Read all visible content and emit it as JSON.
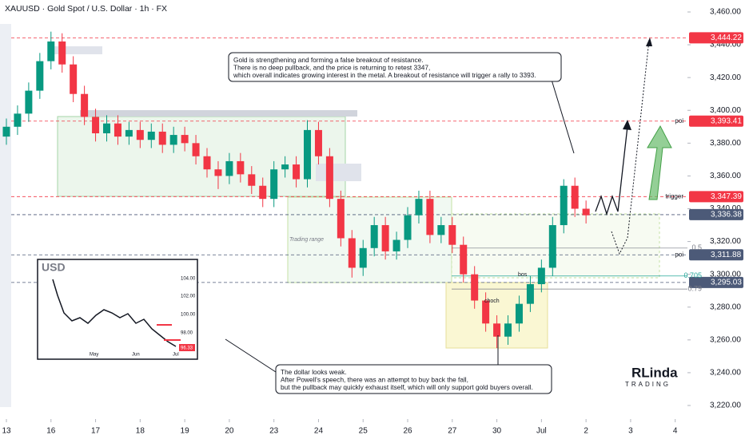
{
  "chart_data": {
    "type": "candlestick",
    "title": "XAUUSD · Gold Spot / U.S. Dollar · 1h · FX",
    "x": [
      0,
      0.25,
      0.5,
      0.75,
      1,
      1.25,
      1.5,
      1.75,
      2,
      2.25,
      2.5,
      2.75,
      3,
      3.25,
      3.5,
      3.75,
      4,
      4.25,
      4.5,
      4.75,
      5,
      5.25,
      5.5,
      5.75,
      6,
      6.25,
      6.5,
      6.75,
      7,
      7.25,
      7.5,
      7.75,
      8,
      8.25,
      8.5,
      8.75,
      9,
      9.25,
      9.5,
      9.75,
      10,
      10.25,
      10.5,
      10.75,
      11,
      11.25,
      11.5,
      11.75,
      12,
      12.25,
      12.5,
      12.75,
      13
    ],
    "open": [
      3384,
      3390,
      3398,
      3412,
      3430,
      3442,
      3428,
      3410,
      3396,
      3386,
      3392,
      3384,
      3388,
      3382,
      3387,
      3379,
      3385,
      3380,
      3372,
      3364,
      3360,
      3369,
      3361,
      3354,
      3346,
      3364,
      3367,
      3358,
      3388,
      3372,
      3346,
      3322,
      3304,
      3316,
      3330,
      3314,
      3321,
      3336,
      3346,
      3324,
      3330,
      3318,
      3300,
      3284,
      3270,
      3262,
      3270,
      3282,
      3294,
      3304,
      3330,
      3354,
      3340
    ],
    "high": [
      3395,
      3403,
      3417,
      3435,
      3448,
      3447,
      3433,
      3415,
      3401,
      3397,
      3397,
      3393,
      3393,
      3392,
      3392,
      3390,
      3390,
      3385,
      3377,
      3369,
      3374,
      3374,
      3366,
      3359,
      3369,
      3372,
      3372,
      3394,
      3393,
      3377,
      3351,
      3327,
      3321,
      3335,
      3335,
      3326,
      3341,
      3351,
      3351,
      3335,
      3335,
      3323,
      3305,
      3289,
      3275,
      3275,
      3287,
      3299,
      3309,
      3335,
      3358,
      3359,
      3345
    ],
    "low": [
      3379,
      3385,
      3393,
      3407,
      3425,
      3423,
      3405,
      3391,
      3381,
      3381,
      3379,
      3379,
      3377,
      3377,
      3374,
      3374,
      3375,
      3367,
      3359,
      3352,
      3355,
      3356,
      3349,
      3341,
      3341,
      3359,
      3353,
      3353,
      3367,
      3341,
      3317,
      3298,
      3299,
      3311,
      3309,
      3309,
      3316,
      3331,
      3319,
      3319,
      3313,
      3295,
      3279,
      3265,
      3255,
      3257,
      3265,
      3277,
      3289,
      3299,
      3325,
      3335,
      3331
    ],
    "close": [
      3390,
      3398,
      3412,
      3430,
      3442,
      3428,
      3410,
      3396,
      3386,
      3392,
      3384,
      3388,
      3382,
      3387,
      3379,
      3385,
      3380,
      3372,
      3364,
      3360,
      3369,
      3361,
      3354,
      3346,
      3364,
      3367,
      3358,
      3388,
      3372,
      3346,
      3322,
      3304,
      3316,
      3330,
      3314,
      3321,
      3336,
      3346,
      3324,
      3330,
      3318,
      3300,
      3284,
      3270,
      3262,
      3270,
      3282,
      3294,
      3304,
      3330,
      3354,
      3340,
      3336
    ],
    "up_color": "#089981",
    "down_color": "#f23645",
    "xlim": [
      0,
      15.4
    ],
    "xticks": [
      {
        "value": 0,
        "label": "13"
      },
      {
        "value": 1,
        "label": "16"
      },
      {
        "value": 2,
        "label": "17"
      },
      {
        "value": 3,
        "label": "18"
      },
      {
        "value": 4,
        "label": "19"
      },
      {
        "value": 5,
        "label": "20"
      },
      {
        "value": 6,
        "label": "23"
      },
      {
        "value": 7,
        "label": "24"
      },
      {
        "value": 8,
        "label": "25"
      },
      {
        "value": 9,
        "label": "26"
      },
      {
        "value": 10,
        "label": "27"
      },
      {
        "value": 11,
        "label": "30"
      },
      {
        "value": 12,
        "label": "Jul"
      },
      {
        "value": 13,
        "label": "2"
      },
      {
        "value": 14,
        "label": "3"
      },
      {
        "value": 15,
        "label": "4"
      }
    ],
    "ylim": [
      3212.7,
      3467.3
    ],
    "yticks": [
      {
        "value": 3220,
        "label": "3,220.00"
      },
      {
        "value": 3240,
        "label": "3,240.00"
      },
      {
        "value": 3260,
        "label": "3,260.00"
      },
      {
        "value": 3280,
        "label": "3,280.00"
      },
      {
        "value": 3300,
        "label": "3,300.00"
      },
      {
        "value": 3320,
        "label": "3,320.00"
      },
      {
        "value": 3340,
        "label": "3,340.00"
      },
      {
        "value": 3360,
        "label": "3,360.00"
      },
      {
        "value": 3380,
        "label": "3,380.00"
      },
      {
        "value": 3400,
        "label": "3,400.00"
      },
      {
        "value": 3420,
        "label": "3,420.00"
      },
      {
        "value": 3440,
        "label": "3,440.00"
      },
      {
        "value": 3460,
        "label": "3,460.00"
      }
    ],
    "levels": [
      {
        "value": 3444.22,
        "label": "3,444.22",
        "color": "#f23645"
      },
      {
        "value": 3393.41,
        "label": "3,393.41",
        "color": "#f23645",
        "tag": "poi"
      },
      {
        "value": 3347.39,
        "label": "3,347.39",
        "color": "#f23645",
        "tag": "trigger"
      },
      {
        "value": 3336.38,
        "label": "3,336.38",
        "color": "#4c5a78"
      },
      {
        "value": 3311.88,
        "label": "3,311.88",
        "color": "#4c5a78",
        "tag": "poi"
      },
      {
        "value": 3295.03,
        "label": "3,295.03",
        "color": "#4c5a78"
      }
    ],
    "fib": [
      {
        "value": 3316,
        "label": "0.5",
        "color": "#787b86"
      },
      {
        "value": 3299,
        "label": "0.705",
        "color": "#26a69a"
      },
      {
        "value": 3291,
        "label": "0.79",
        "color": "#787b86"
      }
    ],
    "annotations": [
      "Trading range",
      "choch",
      "bos"
    ],
    "notes": [
      [
        "Gold is strengthening and forming a false breakout of resistance.",
        "There is no deep pullback, and the price is returning to retest 3347,",
        "which overall indicates growing interest in the metal. A breakout of resistance will trigger a rally to 3393."
      ],
      [
        "The dollar looks weak.",
        "After Powell's speech, there was an attempt to buy back the fall,",
        "but the pullback may quickly exhaust itself, which will only support gold buyers overall."
      ]
    ]
  },
  "inset": {
    "title": "USD",
    "ticks": [
      "104.00",
      "102.00",
      "100.00",
      "98.00"
    ],
    "last": "96.33",
    "months": [
      "May",
      "Jun",
      "Jul"
    ]
  },
  "logo": {
    "name": "RLinda",
    "sub": "TRADING"
  }
}
